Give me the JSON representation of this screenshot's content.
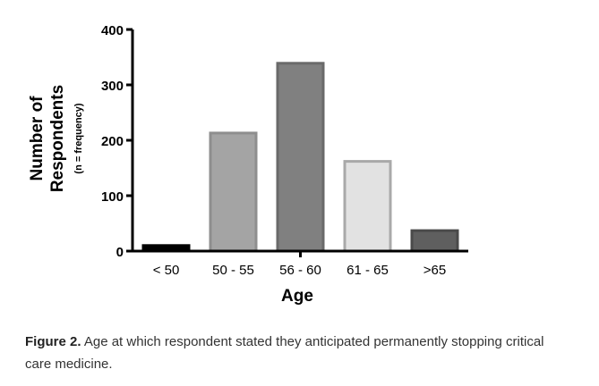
{
  "chart_data": {
    "type": "bar",
    "categories": [
      "< 50",
      "50 - 55",
      "56 - 60",
      "61 - 65",
      ">65"
    ],
    "values": [
      10,
      213,
      339,
      162,
      37
    ],
    "bar_colors": [
      "#000000",
      "#a4a4a4",
      "#808080",
      "#e2e2e2",
      "#5f5f5f"
    ],
    "bar_edge_colors": [
      "#000000",
      "#8e8e8e",
      "#6a6a6a",
      "#a9a9a9",
      "#4a4a4a"
    ],
    "ylim": [
      0,
      400
    ],
    "yticks": [
      0,
      100,
      200,
      300,
      400
    ],
    "ytick_labels": [
      "0",
      "100",
      "200",
      "300",
      "400"
    ],
    "ylabel_line1": "Number of",
    "ylabel_line2": "Respondents",
    "ylabel_sub": "(n = frequency)",
    "xlabel": "Age",
    "grid": false
  },
  "caption": {
    "label": "Figure 2.",
    "text": " Age at which respondent stated they anticipated permanently stopping critical care medicine."
  }
}
